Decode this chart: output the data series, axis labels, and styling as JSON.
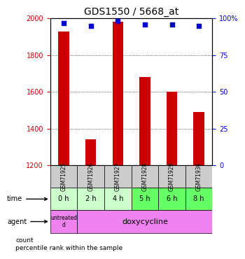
{
  "title": "GDS1550 / 5668_at",
  "samples": [
    "GSM71925",
    "GSM71926",
    "GSM71927",
    "GSM71928",
    "GSM71929",
    "GSM71930"
  ],
  "bar_values": [
    1930,
    1340,
    1980,
    1680,
    1600,
    1490
  ],
  "dot_values": [
    97,
    95,
    98,
    96,
    96,
    95
  ],
  "bar_color": "#cc0000",
  "dot_color": "#0000cc",
  "ylim_left": [
    1200,
    2000
  ],
  "ylim_right": [
    0,
    100
  ],
  "yticks_left": [
    1200,
    1400,
    1600,
    1800,
    2000
  ],
  "yticks_right": [
    0,
    25,
    50,
    75,
    100
  ],
  "ytick_right_labels": [
    "0",
    "25",
    "50",
    "75",
    "100%"
  ],
  "time_labels": [
    "0 h",
    "2 h",
    "4 h",
    "5 h",
    "6 h",
    "8 h"
  ],
  "time_colors": [
    "#ccffcc",
    "#ccffcc",
    "#ccffcc",
    "#66ff66",
    "#66ff66",
    "#66ff66"
  ],
  "sample_bg": "#cccccc",
  "agent_untreated": "untreated\nd",
  "agent_doxy": "doxycycline",
  "agent_color": "#ee82ee",
  "legend_count": "count",
  "legend_pct": "percentile rank within the sample"
}
